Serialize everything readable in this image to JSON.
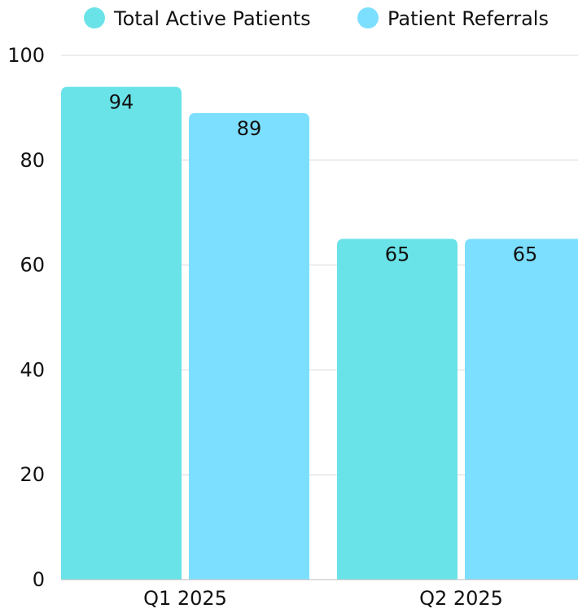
{
  "chart_data": {
    "type": "bar",
    "categories": [
      "Q1 2025",
      "Q2 2025"
    ],
    "series": [
      {
        "name": "Total Active Patients",
        "values": [
          94,
          65
        ],
        "color": "#6ae3e8"
      },
      {
        "name": "Patient Referrals",
        "values": [
          89,
          65
        ],
        "color": "#7ddfff"
      }
    ],
    "ylim": [
      0,
      100
    ],
    "yticks": [
      0,
      20,
      40,
      60,
      80,
      100
    ],
    "grid": true,
    "legend": "top-center",
    "data_labels": true
  }
}
